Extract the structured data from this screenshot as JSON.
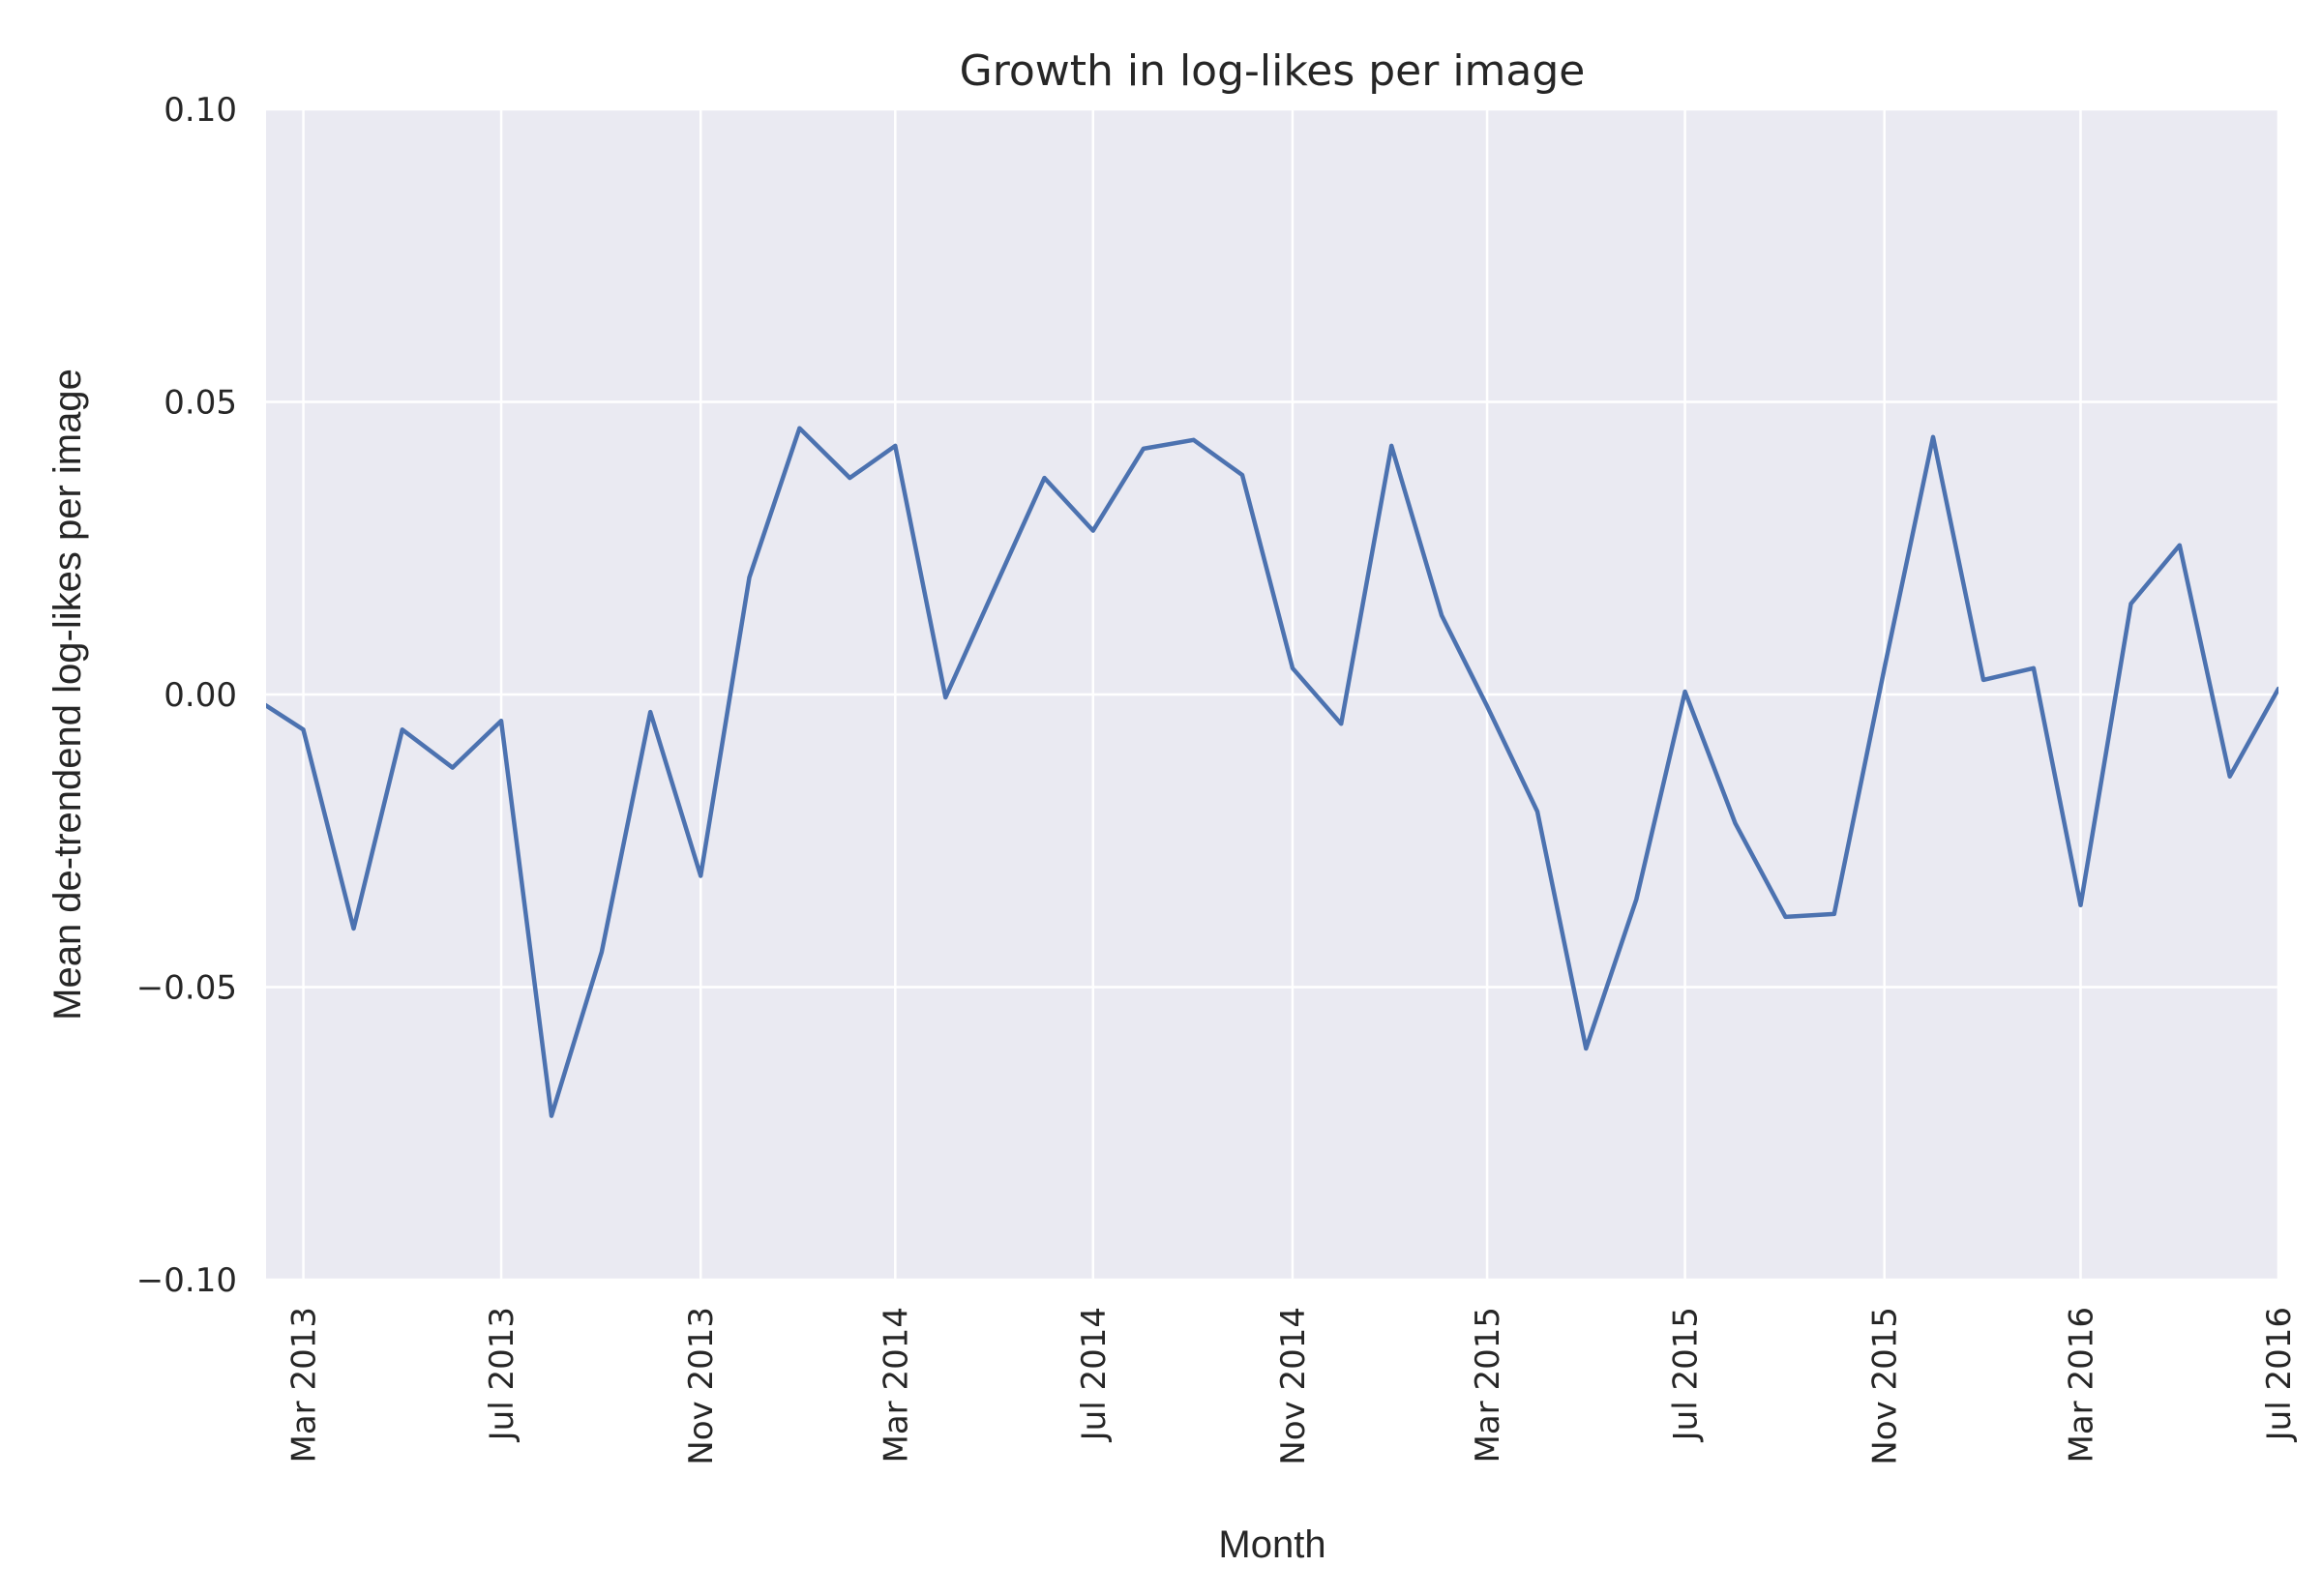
{
  "chart_data": {
    "type": "line",
    "title": "Growth in log-likes per image",
    "xlabel": "Month",
    "ylabel": "Mean de-trendend log-likes per image",
    "x_axis_type": "date",
    "xlim": [
      "2013-02-06",
      "2016-07-01"
    ],
    "ylim": [
      -0.1,
      0.1
    ],
    "x_ticks": [
      {
        "date": "2013-03-01",
        "label": "Mar 2013"
      },
      {
        "date": "2013-07-01",
        "label": "Jul 2013"
      },
      {
        "date": "2013-11-01",
        "label": "Nov 2013"
      },
      {
        "date": "2014-03-01",
        "label": "Mar 2014"
      },
      {
        "date": "2014-07-01",
        "label": "Jul 2014"
      },
      {
        "date": "2014-11-01",
        "label": "Nov 2014"
      },
      {
        "date": "2015-03-01",
        "label": "Mar 2015"
      },
      {
        "date": "2015-07-01",
        "label": "Jul 2015"
      },
      {
        "date": "2015-11-01",
        "label": "Nov 2015"
      },
      {
        "date": "2016-03-01",
        "label": "Mar 2016"
      },
      {
        "date": "2016-07-01",
        "label": "Jul 2016"
      }
    ],
    "y_ticks": [
      {
        "value": 0.1,
        "label": "0.10"
      },
      {
        "value": 0.05,
        "label": "0.05"
      },
      {
        "value": 0.0,
        "label": "0.00"
      },
      {
        "value": -0.05,
        "label": "−0.05"
      },
      {
        "value": -0.1,
        "label": "−0.10"
      }
    ],
    "grid": true,
    "legend": "none",
    "series": [
      {
        "color": "#4c72b0",
        "x": [
          "2013-02-01",
          "2013-03-01",
          "2013-04-01",
          "2013-05-01",
          "2013-06-01",
          "2013-07-01",
          "2013-08-01",
          "2013-09-01",
          "2013-10-01",
          "2013-11-01",
          "2013-12-01",
          "2014-01-01",
          "2014-02-01",
          "2014-03-01",
          "2014-04-01",
          "2014-05-01",
          "2014-06-01",
          "2014-07-01",
          "2014-08-01",
          "2014-09-01",
          "2014-10-01",
          "2014-11-01",
          "2014-12-01",
          "2015-01-01",
          "2015-02-01",
          "2015-03-01",
          "2015-04-01",
          "2015-05-01",
          "2015-06-01",
          "2015-07-01",
          "2015-08-01",
          "2015-09-01",
          "2015-10-01",
          "2015-11-01",
          "2015-12-01",
          "2016-01-01",
          "2016-02-01",
          "2016-03-01",
          "2016-04-01",
          "2016-05-01",
          "2016-06-01",
          "2016-07-01"
        ],
        "values": [
          -0.001,
          -0.006,
          -0.04,
          -0.006,
          -0.0125,
          -0.0045,
          -0.072,
          -0.044,
          -0.003,
          -0.031,
          0.02,
          0.0455,
          0.037,
          0.0425,
          -0.0005,
          0.018,
          0.037,
          0.028,
          0.042,
          0.0435,
          0.0375,
          0.0045,
          -0.005,
          0.0425,
          0.0135,
          -0.002,
          -0.02,
          -0.0605,
          -0.035,
          0.0005,
          -0.022,
          -0.038,
          -0.0375,
          0.0045,
          0.044,
          0.0025,
          0.0045,
          -0.036,
          0.0155,
          0.0255,
          -0.014,
          0.001
        ]
      }
    ]
  }
}
